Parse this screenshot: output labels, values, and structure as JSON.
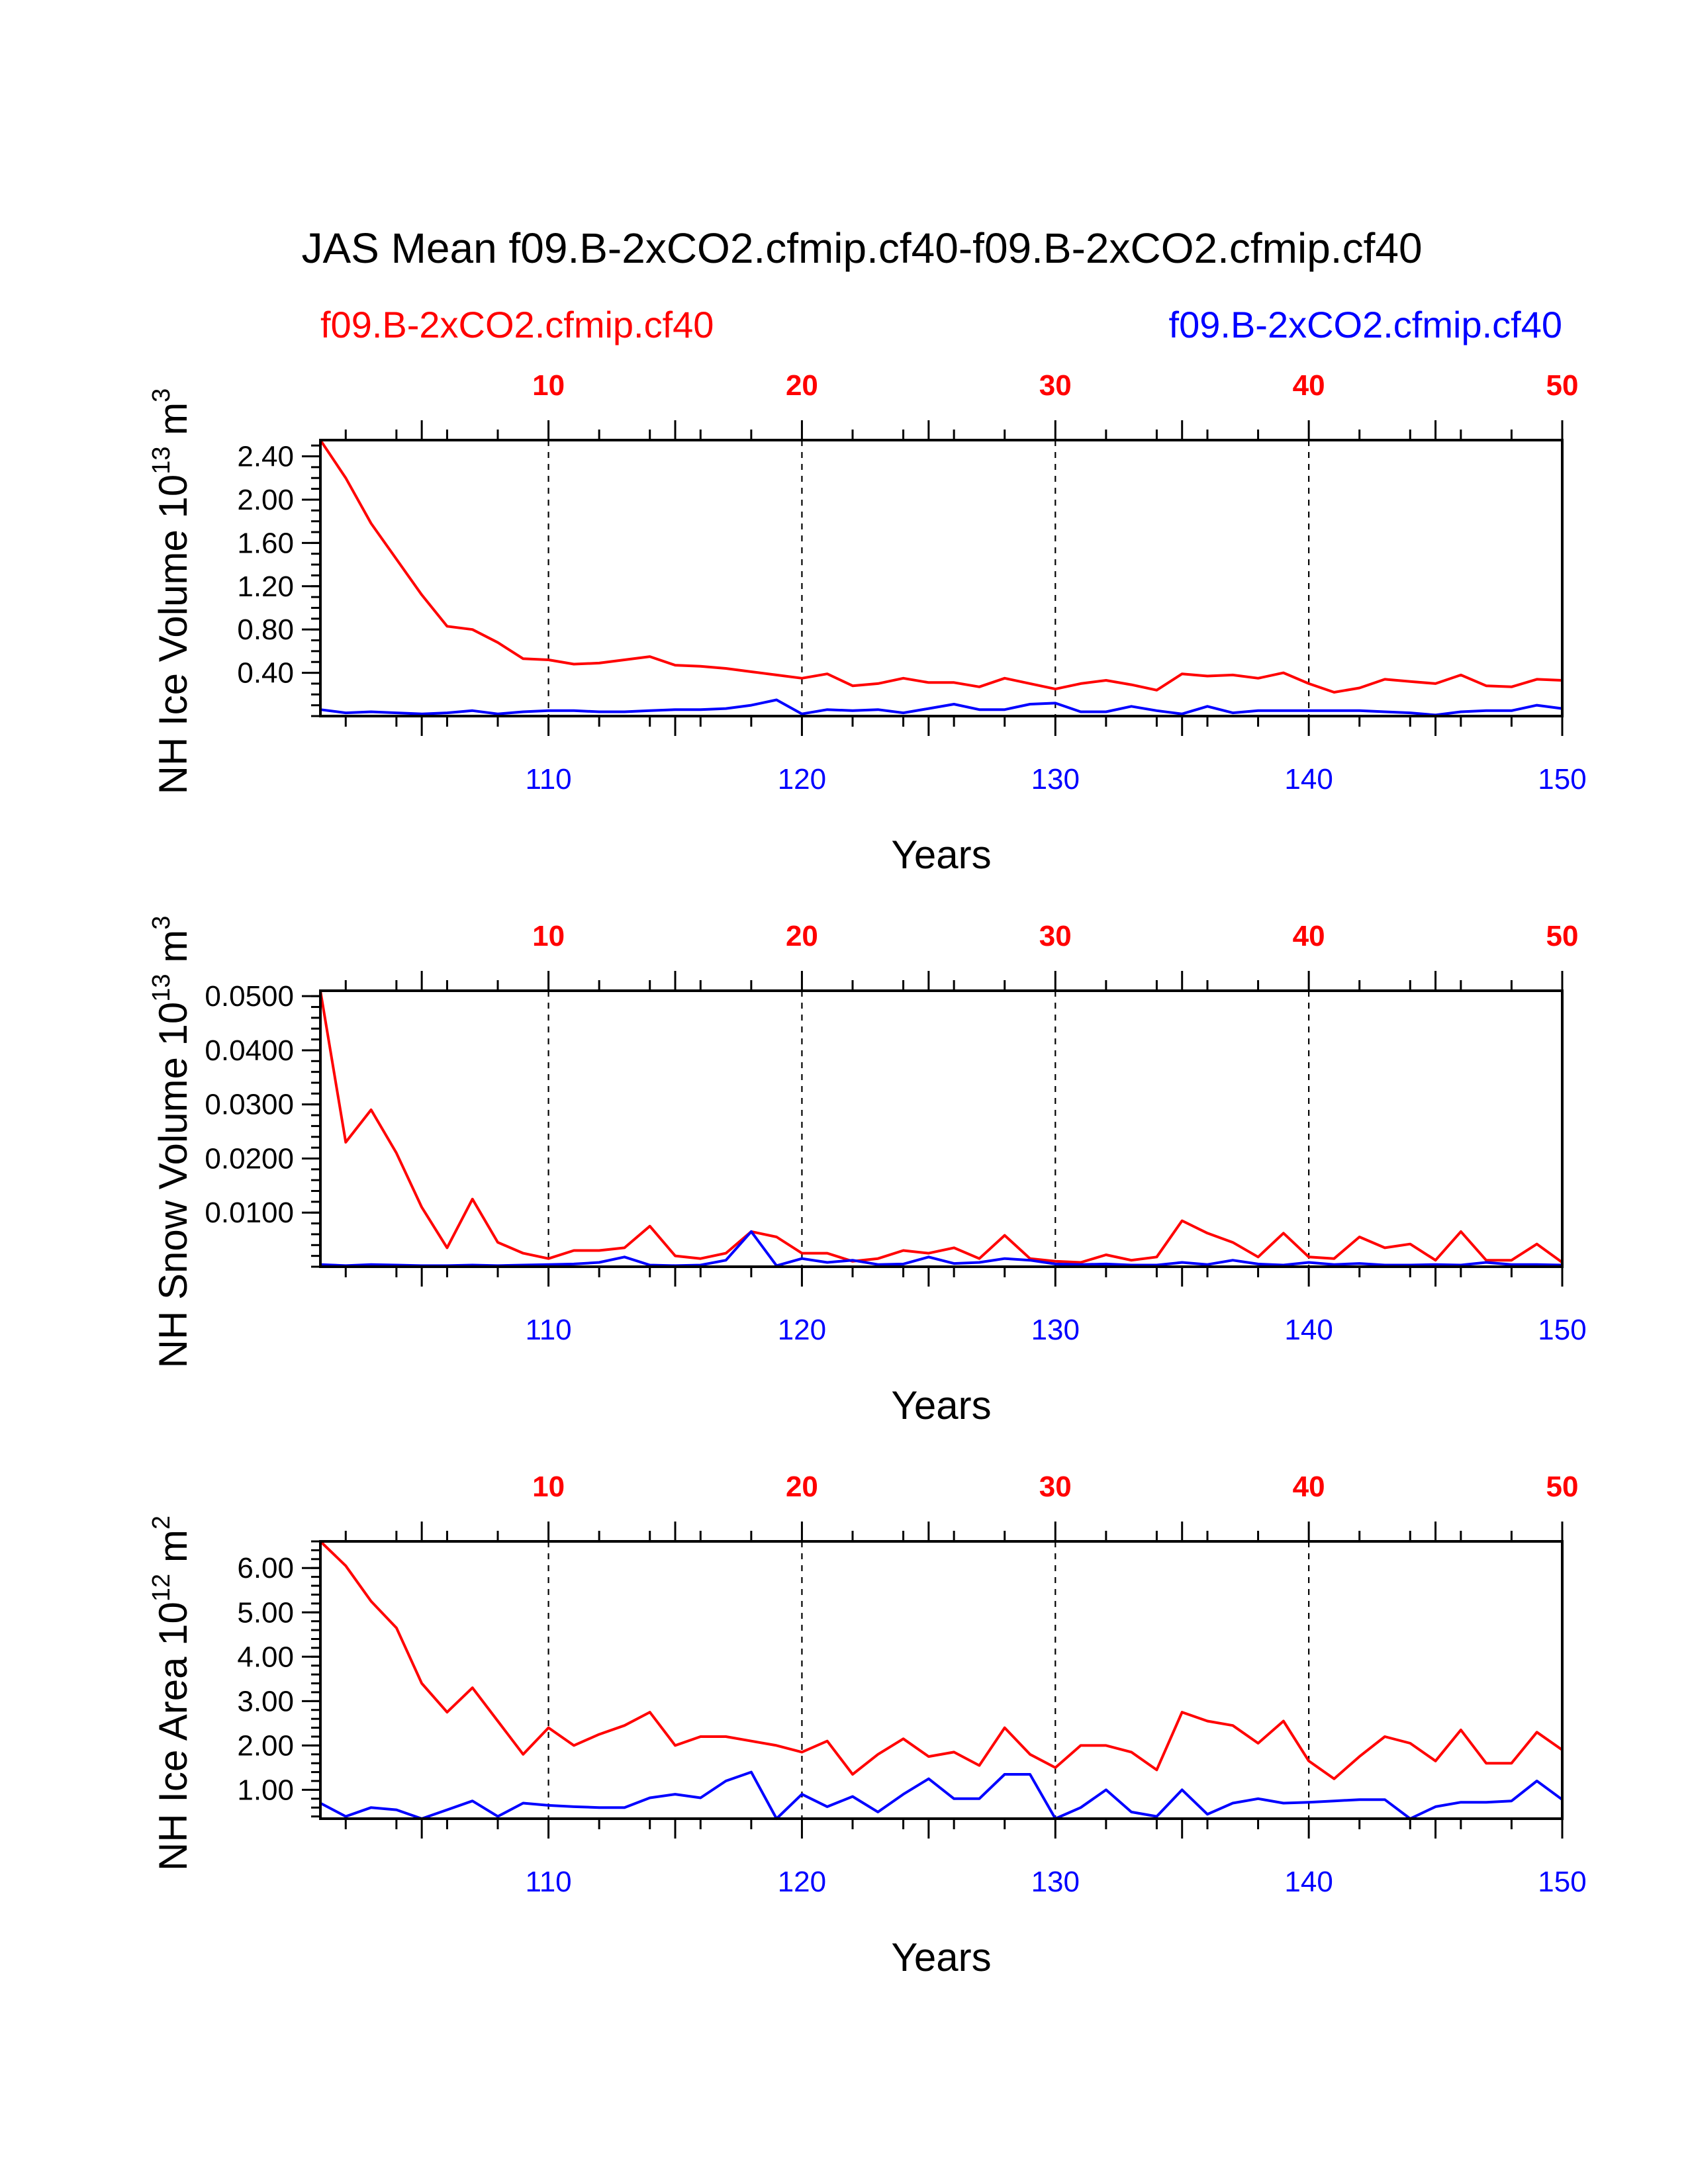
{
  "title": "JAS Mean f09.B-2xCO2.cfmip.cf40-f09.B-2xCO2.cfmip.cf40",
  "legend": {
    "left": {
      "text": "f09.B-2xCO2.cfmip.cf40",
      "color": "#ff0000"
    },
    "right": {
      "text": "f09.B-2xCO2.cfmip.cf40",
      "color": "#0000ff"
    }
  },
  "colors": {
    "case1": "#ff0000",
    "case2": "#0000ff",
    "axis": "#000000"
  },
  "chart_data": [
    {
      "type": "line",
      "ylabel": "NH Ice Volume",
      "yunit": {
        "base": "10",
        "exp": "13",
        "unit": "m",
        "uexp": "3"
      },
      "xlabel": "Years",
      "ylim": [
        0.0,
        2.55
      ],
      "yticks": [
        0.4,
        0.8,
        1.2,
        1.6,
        2.0,
        2.4
      ],
      "yticklabels": [
        "0.40",
        "0.80",
        "1.20",
        "1.60",
        "2.00",
        "2.40"
      ],
      "yminor_step": 0.1,
      "top_axis": {
        "lim": [
          1,
          50
        ],
        "ticks": [
          10,
          20,
          30,
          40,
          50
        ]
      },
      "bottom_axis": {
        "lim": [
          101,
          150
        ],
        "ticks": [
          110,
          120,
          130,
          140,
          150
        ]
      },
      "grid": "dashed vertical at labeled ticks",
      "series": [
        {
          "name": "f09.B-2xCO2.cfmip.cf40",
          "axis": "top",
          "values": [
            2.55,
            2.2,
            1.78,
            1.45,
            1.12,
            0.83,
            0.8,
            0.68,
            0.53,
            0.52,
            0.48,
            0.49,
            0.52,
            0.55,
            0.47,
            0.46,
            0.44,
            0.41,
            0.38,
            0.35,
            0.39,
            0.28,
            0.3,
            0.35,
            0.31,
            0.31,
            0.27,
            0.35,
            0.3,
            0.25,
            0.3,
            0.33,
            0.29,
            0.24,
            0.39,
            0.37,
            0.38,
            0.35,
            0.4,
            0.3,
            0.22,
            0.26,
            0.34,
            0.32,
            0.3,
            0.38,
            0.28,
            0.27,
            0.34,
            0.33
          ]
        },
        {
          "name": "f09.B-2xCO2.cfmip.cf40",
          "axis": "bottom",
          "values": [
            0.06,
            0.03,
            0.04,
            0.03,
            0.02,
            0.03,
            0.05,
            0.02,
            0.04,
            0.05,
            0.05,
            0.04,
            0.04,
            0.05,
            0.06,
            0.06,
            0.07,
            0.1,
            0.15,
            0.02,
            0.06,
            0.05,
            0.06,
            0.03,
            0.07,
            0.11,
            0.06,
            0.06,
            0.11,
            0.12,
            0.04,
            0.04,
            0.09,
            0.05,
            0.02,
            0.09,
            0.03,
            0.05,
            0.05,
            0.05,
            0.05,
            0.05,
            0.04,
            0.03,
            0.01,
            0.04,
            0.05,
            0.05,
            0.1,
            0.07
          ]
        }
      ]
    },
    {
      "type": "line",
      "ylabel": "NH Snow Volume",
      "yunit": {
        "base": "10",
        "exp": "13",
        "unit": "m",
        "uexp": "3"
      },
      "xlabel": "Years",
      "ylim": [
        0.0,
        0.051
      ],
      "yticks": [
        0.01,
        0.02,
        0.03,
        0.04,
        0.05
      ],
      "yticklabels": [
        "0.0100",
        "0.0200",
        "0.0300",
        "0.0400",
        "0.0500"
      ],
      "yminor_step": 0.002,
      "top_axis": {
        "lim": [
          1,
          50
        ],
        "ticks": [
          10,
          20,
          30,
          40,
          50
        ]
      },
      "bottom_axis": {
        "lim": [
          101,
          150
        ],
        "ticks": [
          110,
          120,
          130,
          140,
          150
        ]
      },
      "grid": "dashed vertical at labeled ticks",
      "series": [
        {
          "name": "f09.B-2xCO2.cfmip.cf40",
          "axis": "top",
          "values": [
            0.051,
            0.023,
            0.029,
            0.021,
            0.011,
            0.0035,
            0.0125,
            0.0045,
            0.0025,
            0.0015,
            0.003,
            0.003,
            0.0035,
            0.0075,
            0.002,
            0.0015,
            0.0025,
            0.0065,
            0.0055,
            0.0025,
            0.0025,
            0.001,
            0.0015,
            0.003,
            0.0025,
            0.0035,
            0.0015,
            0.0058,
            0.0015,
            0.001,
            0.0008,
            0.0022,
            0.0012,
            0.0018,
            0.0085,
            0.0062,
            0.0045,
            0.0018,
            0.0062,
            0.0018,
            0.0015,
            0.0055,
            0.0035,
            0.0042,
            0.0012,
            0.0065,
            0.0012,
            0.0012,
            0.0042,
            0.0008
          ]
        },
        {
          "name": "f09.B-2xCO2.cfmip.cf40",
          "axis": "bottom",
          "values": [
            0.0004,
            0.0002,
            0.0004,
            0.0003,
            0.0002,
            0.0002,
            0.0003,
            0.0002,
            0.0003,
            0.0004,
            0.0005,
            0.0008,
            0.0018,
            0.0003,
            0.0002,
            0.0003,
            0.0012,
            0.0065,
            0.0002,
            0.0015,
            0.0008,
            0.0012,
            0.0004,
            0.0005,
            0.0018,
            0.0006,
            0.0008,
            0.0015,
            0.0012,
            0.0005,
            0.0004,
            0.0005,
            0.0003,
            0.0003,
            0.0008,
            0.0004,
            0.0012,
            0.0005,
            0.0003,
            0.0008,
            0.0004,
            0.0006,
            0.0003,
            0.0003,
            0.0004,
            0.0003,
            0.0008,
            0.0004,
            0.0004,
            0.0003
          ]
        }
      ]
    },
    {
      "type": "line",
      "ylabel": "NH Ice Area",
      "yunit": {
        "base": "10",
        "exp": "12",
        "unit": "m",
        "uexp": "2"
      },
      "xlabel": "Years",
      "ylim": [
        0.35,
        6.6
      ],
      "yticks": [
        1.0,
        2.0,
        3.0,
        4.0,
        5.0,
        6.0
      ],
      "yticklabels": [
        "1.00",
        "2.00",
        "3.00",
        "4.00",
        "5.00",
        "6.00"
      ],
      "yminor_step": 0.2,
      "top_axis": {
        "lim": [
          1,
          50
        ],
        "ticks": [
          10,
          20,
          30,
          40,
          50
        ]
      },
      "bottom_axis": {
        "lim": [
          101,
          150
        ],
        "ticks": [
          110,
          120,
          130,
          140,
          150
        ]
      },
      "grid": "dashed vertical at labeled ticks",
      "series": [
        {
          "name": "f09.B-2xCO2.cfmip.cf40",
          "axis": "top",
          "values": [
            6.6,
            6.05,
            5.25,
            4.65,
            3.4,
            2.75,
            3.3,
            2.55,
            1.8,
            2.4,
            2.0,
            2.25,
            2.45,
            2.75,
            2.0,
            2.2,
            2.2,
            2.1,
            2.0,
            1.85,
            2.1,
            1.35,
            1.8,
            2.15,
            1.75,
            1.85,
            1.55,
            2.4,
            1.8,
            1.5,
            2.0,
            2.0,
            1.85,
            1.45,
            2.75,
            2.55,
            2.45,
            2.05,
            2.55,
            1.65,
            1.25,
            1.75,
            2.2,
            2.05,
            1.65,
            2.35,
            1.6,
            1.6,
            2.3,
            1.9
          ]
        },
        {
          "name": "f09.B-2xCO2.cfmip.cf40",
          "axis": "bottom",
          "values": [
            0.7,
            0.4,
            0.6,
            0.55,
            0.35,
            0.55,
            0.75,
            0.4,
            0.7,
            0.65,
            0.62,
            0.6,
            0.6,
            0.82,
            0.9,
            0.82,
            1.2,
            1.4,
            0.35,
            0.9,
            0.62,
            0.85,
            0.5,
            0.9,
            1.25,
            0.8,
            0.8,
            1.35,
            1.35,
            0.35,
            0.6,
            1.0,
            0.5,
            0.4,
            1.0,
            0.45,
            0.7,
            0.8,
            0.7,
            0.72,
            0.75,
            0.78,
            0.78,
            0.35,
            0.62,
            0.72,
            0.72,
            0.75,
            1.2,
            0.78
          ]
        }
      ]
    }
  ]
}
